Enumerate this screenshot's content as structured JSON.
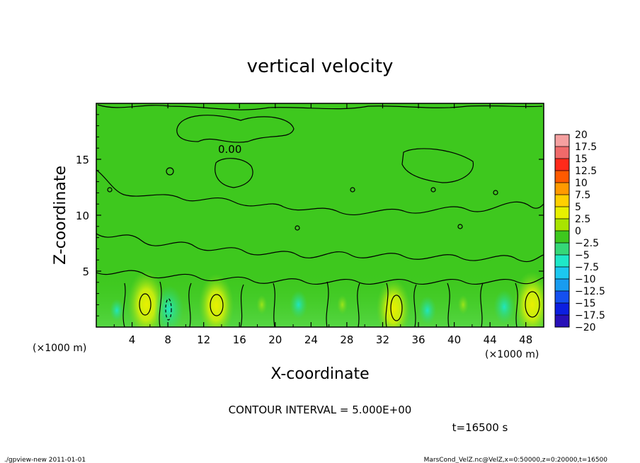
{
  "chart_data": {
    "type": "heatmap",
    "title": "vertical velocity",
    "xlabel": "X-coordinate",
    "ylabel": "Z-coordinate",
    "x_unit_label": "(×1000 m)",
    "y_unit_label": "(×1000 m)",
    "xlim": [
      0,
      50
    ],
    "ylim": [
      0,
      20
    ],
    "x_ticks": [
      "4",
      "8",
      "12",
      "16",
      "20",
      "24",
      "28",
      "32",
      "36",
      "40",
      "44",
      "48"
    ],
    "y_ticks": [
      "5",
      "10",
      "15"
    ],
    "contour_interval_label": "CONTOUR INTERVAL = 5.000E+00",
    "contour_label": "0.00",
    "time_label": "t=16500 s",
    "colorbar_labels": [
      "20",
      "17.5",
      "15",
      "12.5",
      "10",
      "7.5",
      "5",
      "2.5",
      "0",
      "−2.5",
      "−5",
      "−7.5",
      "−10",
      "−12.5",
      "−15",
      "−17.5",
      "−20"
    ],
    "colorbar_colors": [
      "#f5a0a0",
      "#f06a6a",
      "#ff2a1a",
      "#ff5a00",
      "#ff9a00",
      "#ffd000",
      "#e8f000",
      "#a8e400",
      "#3ec81e",
      "#35d878",
      "#1ee8c8",
      "#1cc8f0",
      "#189cf0",
      "#1450f0",
      "#0c1ee0",
      "#2810b8",
      "#6010a8"
    ],
    "hot_spots": [
      {
        "x": 5.6,
        "z": 2.0,
        "w": 5.4
      },
      {
        "x": 13.4,
        "z": 1.9,
        "w": 5.0
      },
      {
        "x": 33.2,
        "z": 1.6,
        "w": 4.8
      },
      {
        "x": 48.7,
        "z": 2.0,
        "w": 5.2
      },
      {
        "x": 18.5,
        "z": 2.0,
        "w": 1.5
      },
      {
        "x": 27.5,
        "z": 2.0,
        "w": 1.5
      },
      {
        "x": 41.0,
        "z": 2.0,
        "w": 1.5
      }
    ],
    "cool_spots": [
      {
        "x": 8.1,
        "z": 1.6,
        "w": -4.2
      },
      {
        "x": 2.3,
        "z": 1.5,
        "w": -2.0
      },
      {
        "x": 22.6,
        "z": 2.0,
        "w": -2.5
      },
      {
        "x": 37.0,
        "z": 1.5,
        "w": -2.5
      },
      {
        "x": 45.6,
        "z": 1.8,
        "w": -3.0
      }
    ]
  },
  "footer": {
    "left": "./gpview-new   2011-01-01",
    "right": "MarsCond_VelZ.nc@VelZ,x=0:50000,z=0:20000,t=16500"
  }
}
